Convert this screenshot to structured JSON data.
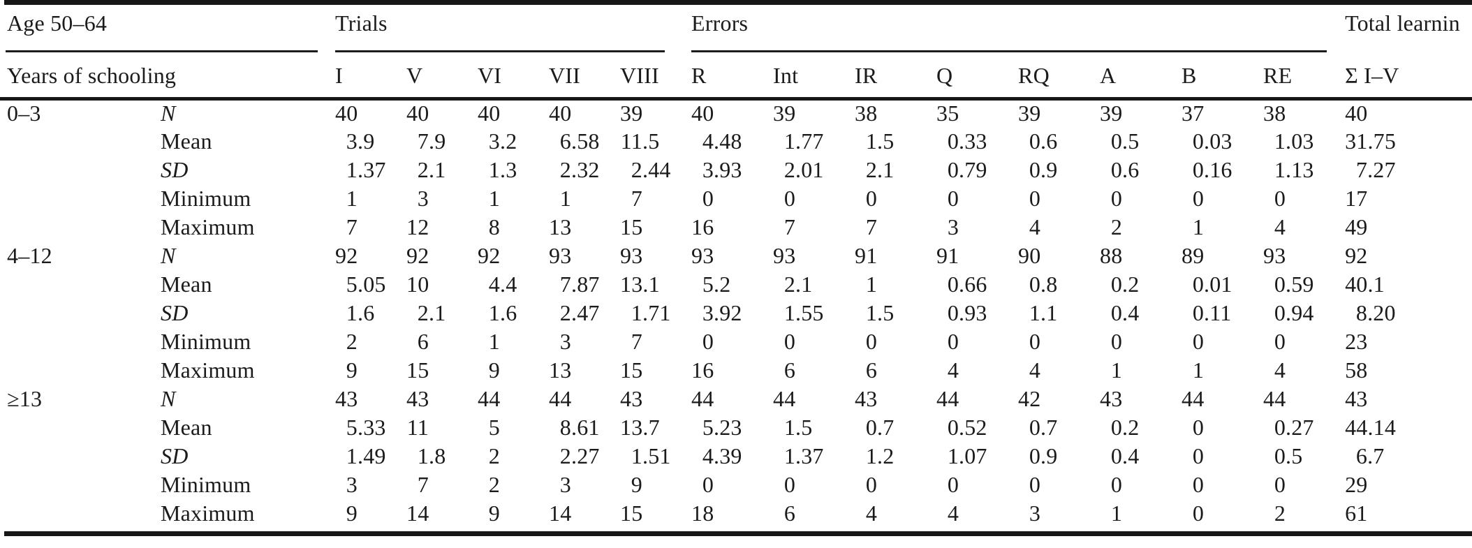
{
  "page": {
    "background": "#ffffff",
    "text_color": "#1b1b1b",
    "rule_color": "#171717"
  },
  "table": {
    "corner": {
      "title": "Age 50–64",
      "subtitle": "Years of schooling"
    },
    "groups": [
      {
        "label": "Trials",
        "rule": true,
        "columns": [
          "I",
          "V",
          "VI",
          "VII",
          "VIII"
        ]
      },
      {
        "label": "Errors",
        "rule": true,
        "columns": [
          "R",
          "Int",
          "IR",
          "Q",
          "RQ",
          "A",
          "B",
          "RE"
        ]
      },
      {
        "label": "Total learnin",
        "rule": false,
        "columns": [
          "Σ I–V"
        ]
      }
    ],
    "row_groups": [
      {
        "label": "0–3",
        "rows": [
          {
            "stat": "N",
            "italic": true,
            "values": [
              "40",
              "40",
              "40",
              "40",
              "39",
              "40",
              "39",
              "38",
              "35",
              "39",
              "39",
              "37",
              "38",
              "40"
            ]
          },
          {
            "stat": "Mean",
            "italic": false,
            "values": [
              "3.9",
              "7.9",
              "3.2",
              "6.58",
              "11.5",
              "4.48",
              "1.77",
              "1.5",
              "0.33",
              "0.6",
              "0.5",
              "0.03",
              "1.03",
              "31.75"
            ]
          },
          {
            "stat": "SD",
            "italic": true,
            "values": [
              "1.37",
              "2.1",
              "1.3",
              "2.32",
              "2.44",
              "3.93",
              "2.01",
              "2.1",
              "0.79",
              "0.9",
              "0.6",
              "0.16",
              "1.13",
              "7.27"
            ]
          },
          {
            "stat": "Minimum",
            "italic": false,
            "values": [
              "1",
              "3",
              "1",
              "1",
              "7",
              "0",
              "0",
              "0",
              "0",
              "0",
              "0",
              "0",
              "0",
              "17"
            ]
          },
          {
            "stat": "Maximum",
            "italic": false,
            "values": [
              "7",
              "12",
              "8",
              "13",
              "15",
              "16",
              "7",
              "7",
              "3",
              "4",
              "2",
              "1",
              "4",
              "49"
            ]
          }
        ]
      },
      {
        "label": "4–12",
        "rows": [
          {
            "stat": "N",
            "italic": true,
            "values": [
              "92",
              "92",
              "92",
              "93",
              "93",
              "93",
              "93",
              "91",
              "91",
              "90",
              "88",
              "89",
              "93",
              "92"
            ]
          },
          {
            "stat": "Mean",
            "italic": false,
            "values": [
              "5.05",
              "10",
              "4.4",
              "7.87",
              "13.1",
              "5.2",
              "2.1",
              "1",
              "0.66",
              "0.8",
              "0.2",
              "0.01",
              "0.59",
              "40.1"
            ]
          },
          {
            "stat": "SD",
            "italic": true,
            "values": [
              "1.6",
              "2.1",
              "1.6",
              "2.47",
              "1.71",
              "3.92",
              "1.55",
              "1.5",
              "0.93",
              "1.1",
              "0.4",
              "0.11",
              "0.94",
              "8.20"
            ]
          },
          {
            "stat": "Minimum",
            "italic": false,
            "values": [
              "2",
              "6",
              "1",
              "3",
              "7",
              "0",
              "0",
              "0",
              "0",
              "0",
              "0",
              "0",
              "0",
              "23"
            ]
          },
          {
            "stat": "Maximum",
            "italic": false,
            "values": [
              "9",
              "15",
              "9",
              "13",
              "15",
              "16",
              "6",
              "6",
              "4",
              "4",
              "1",
              "1",
              "4",
              "58"
            ]
          }
        ]
      },
      {
        "label": "≥13",
        "rows": [
          {
            "stat": "N",
            "italic": true,
            "values": [
              "43",
              "43",
              "44",
              "44",
              "43",
              "44",
              "44",
              "43",
              "44",
              "42",
              "43",
              "44",
              "44",
              "43"
            ]
          },
          {
            "stat": "Mean",
            "italic": false,
            "values": [
              "5.33",
              "11",
              "5",
              "8.61",
              "13.7",
              "5.23",
              "1.5",
              "0.7",
              "0.52",
              "0.7",
              "0.2",
              "0",
              "0.27",
              "44.14"
            ]
          },
          {
            "stat": "SD",
            "italic": true,
            "values": [
              "1.49",
              "1.8",
              "2",
              "2.27",
              "1.51",
              "4.39",
              "1.37",
              "1.2",
              "1.07",
              "0.9",
              "0.4",
              "0",
              "0.5",
              "6.7"
            ]
          },
          {
            "stat": "Minimum",
            "italic": false,
            "values": [
              "3",
              "7",
              "2",
              "3",
              "9",
              "0",
              "0",
              "0",
              "0",
              "0",
              "0",
              "0",
              "0",
              "29"
            ]
          },
          {
            "stat": "Maximum",
            "italic": false,
            "values": [
              "9",
              "14",
              "9",
              "14",
              "15",
              "18",
              "6",
              "4",
              "4",
              "3",
              "1",
              "0",
              "2",
              "61"
            ]
          }
        ]
      }
    ]
  }
}
